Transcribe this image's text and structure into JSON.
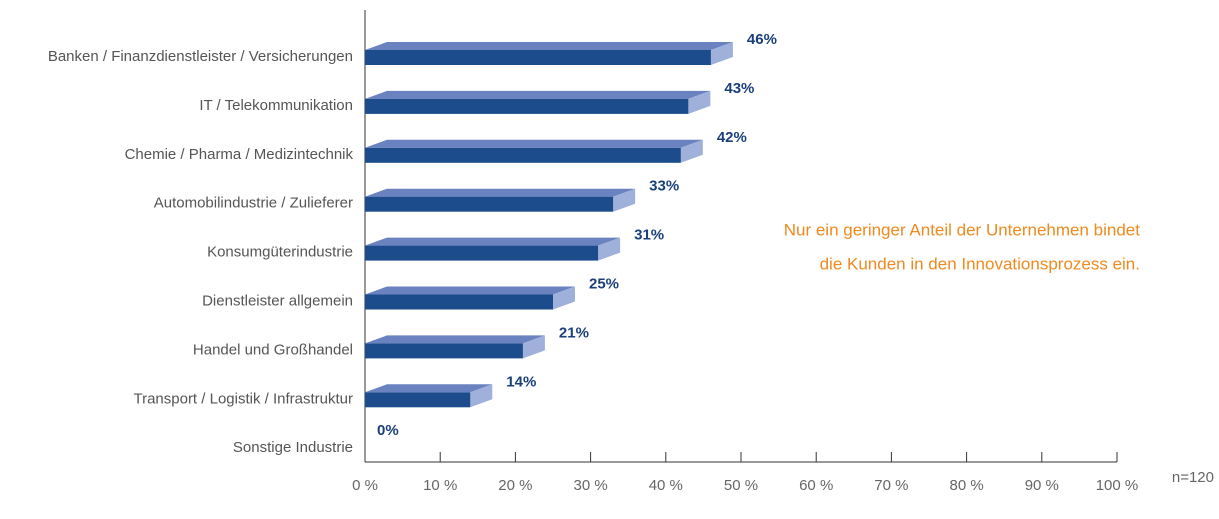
{
  "chart_data": {
    "type": "hbar3d",
    "categories": [
      "Banken / Finanzdienstleister / Versicherungen",
      "IT / Telekommunikation",
      "Chemie / Pharma / Medizintechnik",
      "Automobilindustrie / Zulieferer",
      "Konsumgüterindustrie",
      "Dienstleister allgemein",
      "Handel und Großhandel",
      "Transport / Logistik / Infrastruktur",
      "Sonstige Industrie"
    ],
    "values": [
      46,
      43,
      42,
      33,
      31,
      25,
      21,
      14,
      0
    ],
    "value_labels": [
      "46%",
      "43%",
      "42%",
      "33%",
      "31%",
      "25%",
      "21%",
      "14%",
      "0%"
    ],
    "color": "#1d4c8c",
    "xlim": [
      0,
      100
    ],
    "xticks": [
      {
        "value": 0,
        "label": "0 %"
      },
      {
        "value": 10,
        "label": "10 %"
      },
      {
        "value": 20,
        "label": "20 %"
      },
      {
        "value": 30,
        "label": "30 %"
      },
      {
        "value": 40,
        "label": "40 %"
      },
      {
        "value": 50,
        "label": "50 %"
      },
      {
        "value": 60,
        "label": "60 %"
      },
      {
        "value": 70,
        "label": "70 %"
      },
      {
        "value": 80,
        "label": "80 %"
      },
      {
        "value": 90,
        "label": "90 %"
      },
      {
        "value": 100,
        "label": "100 %"
      }
    ],
    "annotation": [
      "Nur ein geringer Anteil der Unternehmen bindet",
      "die Kunden in den Innovationsprozess ein."
    ],
    "note": "n=120"
  }
}
